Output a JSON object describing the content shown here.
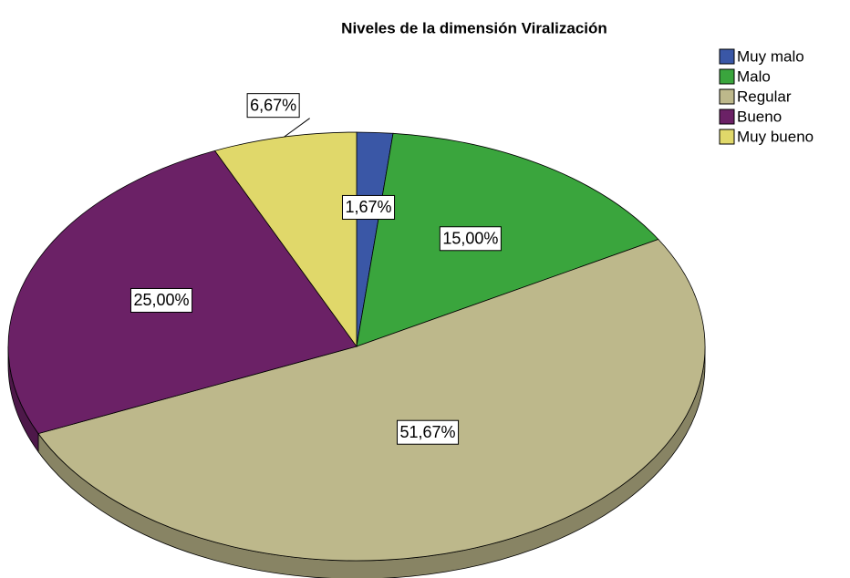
{
  "chart_data": {
    "type": "pie",
    "title": "Niveles de la dimensión Viralización",
    "categories": [
      "Muy malo",
      "Malo",
      "Regular",
      "Bueno",
      "Muy bueno"
    ],
    "values": [
      1.67,
      15.0,
      51.67,
      25.0,
      6.67
    ],
    "value_labels": [
      "1,67%",
      "15,00%",
      "51,67%",
      "25,00%",
      "6,67%"
    ],
    "colors": [
      "#3a57a6",
      "#3aa53d",
      "#bdb88b",
      "#6b2166",
      "#e0d86a"
    ],
    "legend": "top-right"
  }
}
